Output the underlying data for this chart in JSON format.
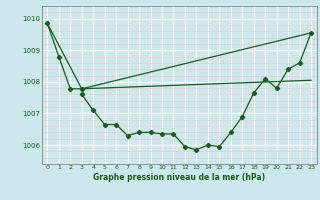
{
  "bg_color": "#cce8ec",
  "grid_color_major": "#ffffff",
  "grid_color_minor": "#f0c8c8",
  "line_color": "#1a5c1a",
  "title": "Graphe pression niveau de la mer (hPa)",
  "xlim": [
    -0.5,
    23.5
  ],
  "ylim": [
    1005.4,
    1010.4
  ],
  "yticks": [
    1006,
    1007,
    1008,
    1009,
    1010
  ],
  "xticks": [
    0,
    1,
    2,
    3,
    4,
    5,
    6,
    7,
    8,
    9,
    10,
    11,
    12,
    13,
    14,
    15,
    16,
    17,
    18,
    19,
    20,
    21,
    22,
    23
  ],
  "series1_x": [
    0,
    1,
    2,
    3
  ],
  "series1_y": [
    1009.85,
    1008.8,
    1007.78,
    1007.78
  ],
  "series2_x": [
    0,
    3,
    23
  ],
  "series2_y": [
    1009.85,
    1007.78,
    1009.55
  ],
  "series3_x": [
    3,
    23
  ],
  "series3_y": [
    1007.78,
    1008.05
  ],
  "series4_x": [
    3,
    4,
    5,
    6,
    7,
    8,
    9,
    10,
    11,
    12,
    13,
    14,
    15,
    16,
    17,
    18,
    19,
    20,
    21,
    22,
    23
  ],
  "series4_y": [
    1007.6,
    1007.1,
    1006.65,
    1006.65,
    1006.3,
    1006.4,
    1006.4,
    1006.35,
    1006.35,
    1005.95,
    1005.85,
    1006.0,
    1005.95,
    1006.4,
    1006.9,
    1007.65,
    1008.1,
    1007.8,
    1008.4,
    1008.6,
    1009.55
  ]
}
